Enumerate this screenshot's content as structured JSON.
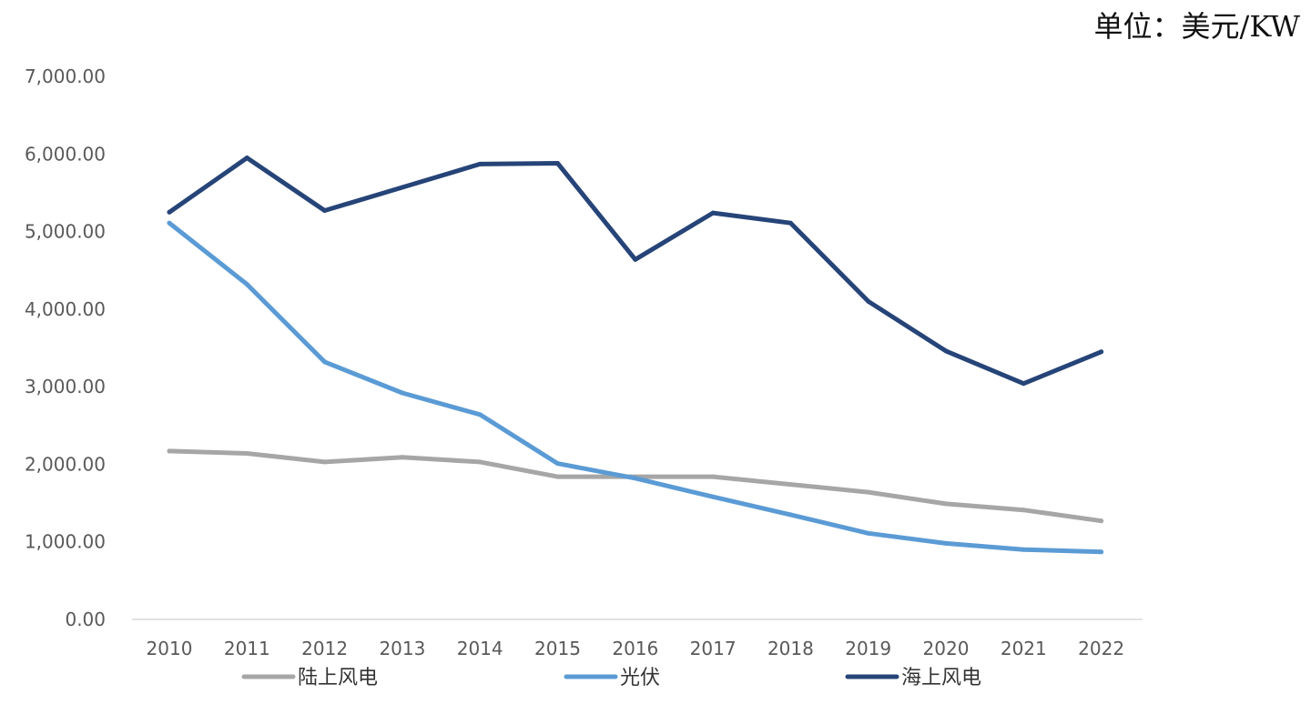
{
  "unit_label": "单位：美元/KW",
  "chart_data": {
    "type": "line",
    "title": "",
    "xlabel": "",
    "ylabel": "",
    "unit": "单位：美元/KW",
    "categories": [
      "2010",
      "2011",
      "2012",
      "2013",
      "2014",
      "2015",
      "2016",
      "2017",
      "2018",
      "2019",
      "2020",
      "2021",
      "2022"
    ],
    "y_tick_labels": [
      "0.00",
      "1,000.00",
      "2,000.00",
      "3,000.00",
      "4,000.00",
      "5,000.00",
      "6,000.00",
      "7,000.00"
    ],
    "ylim": [
      0,
      7000
    ],
    "grid": false,
    "legend_position": "bottom",
    "series": [
      {
        "name": "陆上风电",
        "color": "#a6a6a6",
        "values": [
          2170,
          2140,
          2030,
          2090,
          2030,
          1840,
          1840,
          1840,
          1740,
          1640,
          1490,
          1410,
          1270
        ]
      },
      {
        "name": "光伏",
        "color": "#5b9bd5",
        "values": [
          5110,
          4320,
          3320,
          2920,
          2640,
          2010,
          1820,
          1580,
          1350,
          1110,
          980,
          900,
          870
        ]
      },
      {
        "name": "海上风电",
        "color": "#264478",
        "values": [
          5250,
          5950,
          5270,
          5570,
          5870,
          5880,
          4640,
          5240,
          5110,
          4100,
          3460,
          3040,
          3450
        ]
      }
    ]
  }
}
